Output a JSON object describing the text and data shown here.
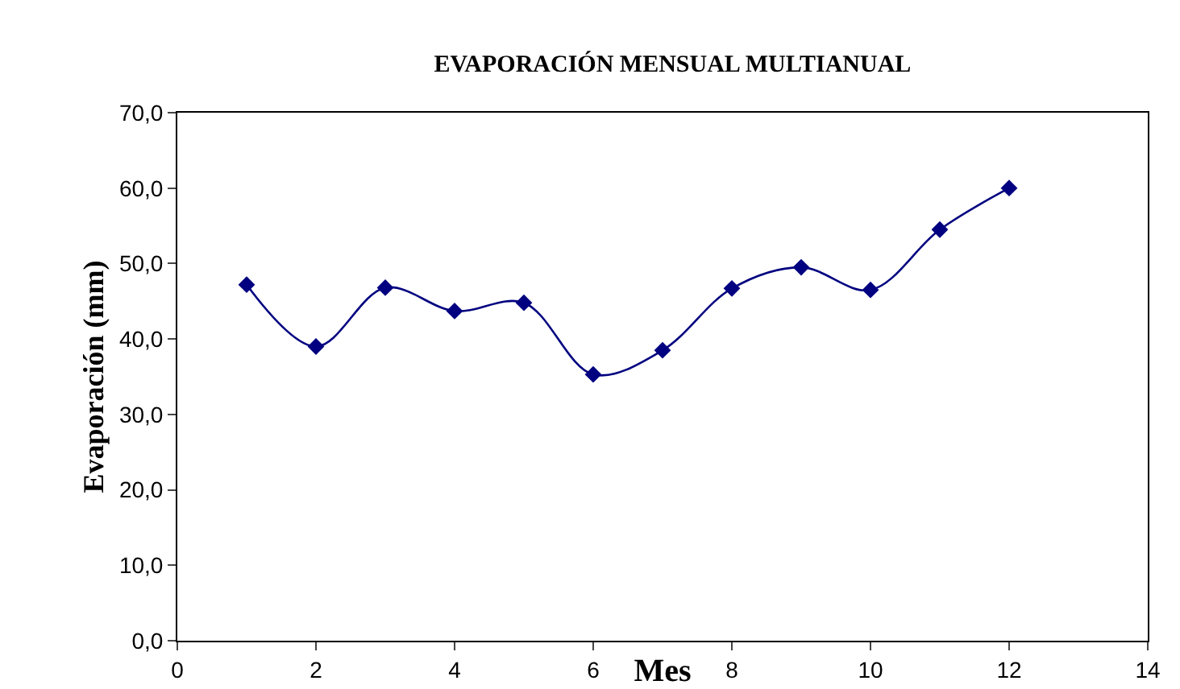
{
  "chart_data": {
    "type": "line",
    "title": "EVAPORACIÓN MENSUAL MULTIANUAL",
    "xlabel": "Mes",
    "ylabel": "Evaporación (mm)",
    "x": [
      1,
      2,
      3,
      4,
      5,
      6,
      7,
      8,
      9,
      10,
      11,
      12
    ],
    "series": [
      {
        "color": "#000080",
        "values": [
          47.2,
          39.0,
          46.8,
          43.7,
          44.8,
          35.3,
          38.5,
          46.7,
          49.5,
          46.5,
          54.5,
          60.0
        ]
      }
    ],
    "xlim": [
      0,
      14
    ],
    "xticks": [
      0,
      2,
      4,
      6,
      8,
      10,
      12,
      14
    ],
    "ylim": [
      0,
      70
    ],
    "yticks": [
      {
        "value": 0,
        "label": "0,0"
      },
      {
        "value": 10,
        "label": "10,0"
      },
      {
        "value": 20,
        "label": "20,0"
      },
      {
        "value": 30,
        "label": "30,0"
      },
      {
        "value": 40,
        "label": "40,0"
      },
      {
        "value": 50,
        "label": "50,0"
      },
      {
        "value": 60,
        "label": "60,0"
      },
      {
        "value": 70,
        "label": "70,0"
      }
    ],
    "grid": false,
    "marker": "diamond",
    "line_style": "solid"
  }
}
